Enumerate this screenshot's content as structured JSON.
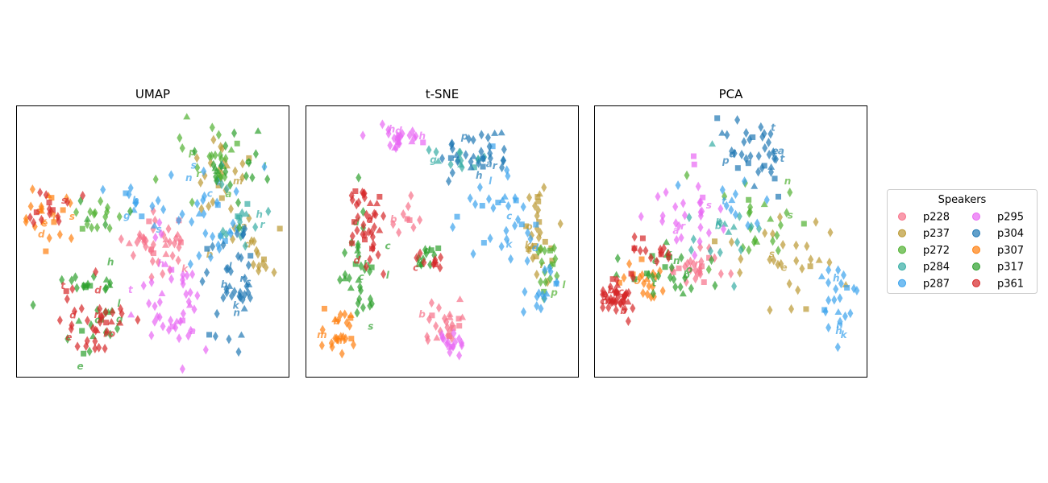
{
  "chart_data": [
    {
      "type": "scatter",
      "title": "UMAP",
      "xlabel": "",
      "ylabel": "",
      "grid": false,
      "ticks": false,
      "regions": [
        {
          "speaker": "p228",
          "cx": 0.52,
          "cy": 0.52,
          "rx": 0.12,
          "ry": 0.1,
          "n": 40
        },
        {
          "speaker": "p237",
          "cx": 0.75,
          "cy": 0.3,
          "rx": 0.12,
          "ry": 0.18,
          "n": 30
        },
        {
          "speaker": "p237",
          "cx": 0.9,
          "cy": 0.55,
          "rx": 0.06,
          "ry": 0.08,
          "n": 12
        },
        {
          "speaker": "p272",
          "cx": 0.7,
          "cy": 0.2,
          "rx": 0.15,
          "ry": 0.12,
          "n": 25
        },
        {
          "speaker": "p272",
          "cx": 0.3,
          "cy": 0.4,
          "rx": 0.12,
          "ry": 0.08,
          "n": 14
        },
        {
          "speaker": "p284",
          "cx": 0.82,
          "cy": 0.45,
          "rx": 0.1,
          "ry": 0.12,
          "n": 18
        },
        {
          "speaker": "p287",
          "cx": 0.7,
          "cy": 0.4,
          "rx": 0.14,
          "ry": 0.16,
          "n": 35
        },
        {
          "speaker": "p287",
          "cx": 0.45,
          "cy": 0.35,
          "rx": 0.1,
          "ry": 0.06,
          "n": 12
        },
        {
          "speaker": "p295",
          "cx": 0.55,
          "cy": 0.72,
          "rx": 0.12,
          "ry": 0.2,
          "n": 45
        },
        {
          "speaker": "p304",
          "cx": 0.8,
          "cy": 0.65,
          "rx": 0.1,
          "ry": 0.2,
          "n": 45
        },
        {
          "speaker": "p307",
          "cx": 0.12,
          "cy": 0.42,
          "rx": 0.1,
          "ry": 0.1,
          "n": 25
        },
        {
          "speaker": "p317",
          "cx": 0.28,
          "cy": 0.68,
          "rx": 0.14,
          "ry": 0.2,
          "n": 40
        },
        {
          "speaker": "p317",
          "cx": 0.8,
          "cy": 0.25,
          "rx": 0.12,
          "ry": 0.15,
          "n": 20
        },
        {
          "speaker": "p361",
          "cx": 0.28,
          "cy": 0.8,
          "rx": 0.12,
          "ry": 0.12,
          "n": 40
        },
        {
          "speaker": "p361",
          "cx": 0.12,
          "cy": 0.38,
          "rx": 0.08,
          "ry": 0.08,
          "n": 15
        }
      ]
    },
    {
      "type": "scatter",
      "title": "t-SNE",
      "xlabel": "",
      "ylabel": "",
      "grid": false,
      "ticks": false,
      "regions": [
        {
          "speaker": "p228",
          "cx": 0.5,
          "cy": 0.8,
          "rx": 0.06,
          "ry": 0.08,
          "n": 25
        },
        {
          "speaker": "p228",
          "cx": 0.38,
          "cy": 0.4,
          "rx": 0.06,
          "ry": 0.06,
          "n": 10
        },
        {
          "speaker": "p237",
          "cx": 0.85,
          "cy": 0.45,
          "rx": 0.06,
          "ry": 0.15,
          "n": 30
        },
        {
          "speaker": "p272",
          "cx": 0.9,
          "cy": 0.6,
          "rx": 0.05,
          "ry": 0.12,
          "n": 18
        },
        {
          "speaker": "p284",
          "cx": 0.55,
          "cy": 0.2,
          "rx": 0.12,
          "ry": 0.06,
          "n": 15
        },
        {
          "speaker": "p287",
          "cx": 0.7,
          "cy": 0.4,
          "rx": 0.14,
          "ry": 0.16,
          "n": 35
        },
        {
          "speaker": "p287",
          "cx": 0.85,
          "cy": 0.72,
          "rx": 0.06,
          "ry": 0.08,
          "n": 15
        },
        {
          "speaker": "p295",
          "cx": 0.36,
          "cy": 0.12,
          "rx": 0.1,
          "ry": 0.05,
          "n": 25
        },
        {
          "speaker": "p295",
          "cx": 0.52,
          "cy": 0.87,
          "rx": 0.04,
          "ry": 0.06,
          "n": 15
        },
        {
          "speaker": "p304",
          "cx": 0.62,
          "cy": 0.18,
          "rx": 0.12,
          "ry": 0.08,
          "n": 35
        },
        {
          "speaker": "p307",
          "cx": 0.12,
          "cy": 0.82,
          "rx": 0.07,
          "ry": 0.08,
          "n": 25
        },
        {
          "speaker": "p317",
          "cx": 0.2,
          "cy": 0.62,
          "rx": 0.08,
          "ry": 0.2,
          "n": 35
        },
        {
          "speaker": "p317",
          "cx": 0.45,
          "cy": 0.55,
          "rx": 0.06,
          "ry": 0.04,
          "n": 12
        },
        {
          "speaker": "p361",
          "cx": 0.22,
          "cy": 0.45,
          "rx": 0.07,
          "ry": 0.15,
          "n": 40
        },
        {
          "speaker": "p361",
          "cx": 0.45,
          "cy": 0.57,
          "rx": 0.05,
          "ry": 0.03,
          "n": 10
        }
      ]
    },
    {
      "type": "scatter",
      "title": "PCA",
      "xlabel": "",
      "ylabel": "",
      "grid": false,
      "ticks": false,
      "regions": [
        {
          "speaker": "p228",
          "cx": 0.38,
          "cy": 0.6,
          "rx": 0.1,
          "ry": 0.06,
          "n": 25
        },
        {
          "speaker": "p237",
          "cx": 0.7,
          "cy": 0.58,
          "rx": 0.18,
          "ry": 0.18,
          "n": 30
        },
        {
          "speaker": "p272",
          "cx": 0.65,
          "cy": 0.4,
          "rx": 0.2,
          "ry": 0.15,
          "n": 25
        },
        {
          "speaker": "p284",
          "cx": 0.5,
          "cy": 0.45,
          "rx": 0.15,
          "ry": 0.15,
          "n": 18
        },
        {
          "speaker": "p287",
          "cx": 0.9,
          "cy": 0.75,
          "rx": 0.06,
          "ry": 0.15,
          "n": 25
        },
        {
          "speaker": "p287",
          "cx": 0.5,
          "cy": 0.35,
          "rx": 0.12,
          "ry": 0.1,
          "n": 12
        },
        {
          "speaker": "p295",
          "cx": 0.35,
          "cy": 0.4,
          "rx": 0.15,
          "ry": 0.15,
          "n": 30
        },
        {
          "speaker": "p304",
          "cx": 0.6,
          "cy": 0.18,
          "rx": 0.12,
          "ry": 0.12,
          "n": 40
        },
        {
          "speaker": "p307",
          "cx": 0.2,
          "cy": 0.65,
          "rx": 0.08,
          "ry": 0.06,
          "n": 20
        },
        {
          "speaker": "p317",
          "cx": 0.25,
          "cy": 0.62,
          "rx": 0.12,
          "ry": 0.08,
          "n": 30
        },
        {
          "speaker": "p361",
          "cx": 0.08,
          "cy": 0.7,
          "rx": 0.06,
          "ry": 0.05,
          "n": 45
        },
        {
          "speaker": "p361",
          "cx": 0.2,
          "cy": 0.55,
          "rx": 0.08,
          "ry": 0.05,
          "n": 15
        }
      ]
    }
  ],
  "legend": {
    "title": "Speakers",
    "placement": "right",
    "ncols": 2,
    "entries": [
      {
        "name": "p228",
        "color": "#f77189"
      },
      {
        "name": "p237",
        "color": "#bb9832"
      },
      {
        "name": "p272",
        "color": "#50b131"
      },
      {
        "name": "p284",
        "color": "#36ada4"
      },
      {
        "name": "p287",
        "color": "#3ba3ec"
      },
      {
        "name": "p295",
        "color": "#e866f4"
      },
      {
        "name": "p304",
        "color": "#1f77b4"
      },
      {
        "name": "p307",
        "color": "#ff7f0e"
      },
      {
        "name": "p317",
        "color": "#2ca02c"
      },
      {
        "name": "p361",
        "color": "#d62728"
      }
    ]
  },
  "marker_letters": [
    "n",
    "e",
    "s",
    "m",
    "a",
    "r",
    "t",
    "l",
    "h",
    "d",
    "c",
    "k",
    "b",
    "o",
    "p",
    "g"
  ]
}
